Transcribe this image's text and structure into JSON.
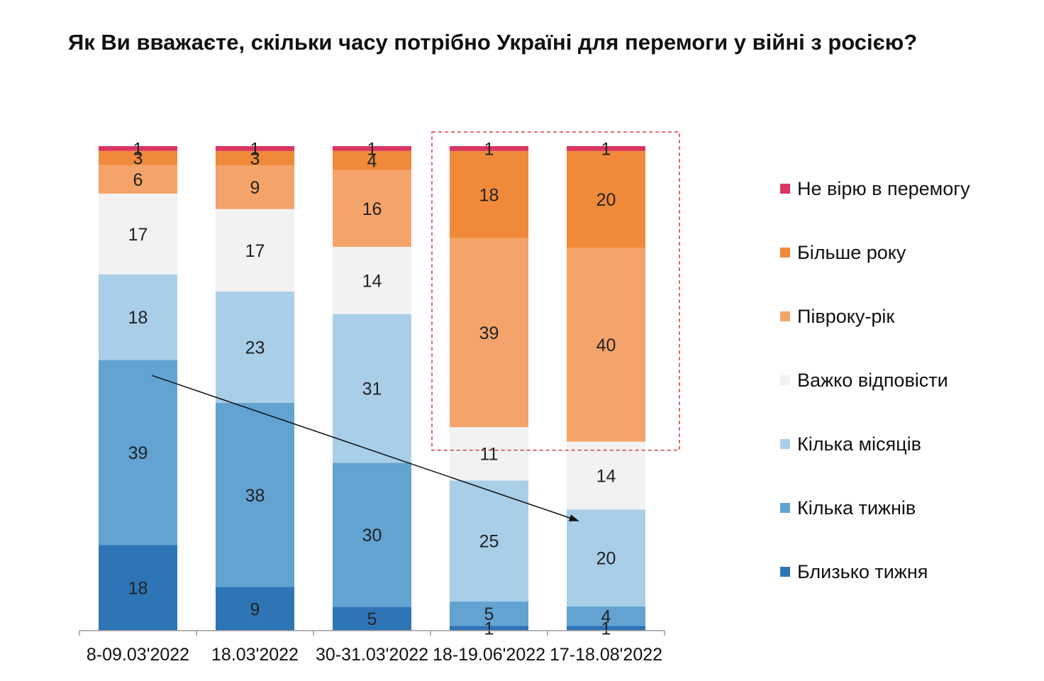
{
  "chart_data": {
    "type": "bar",
    "stacked": true,
    "title": "Як Ви вважаєте, скільки часу потрібно Україні для перемоги у війні з росією?",
    "categories": [
      "8-09.03'2022",
      "18.03'2022",
      "30-31.03'2022",
      "18-19.06'2022",
      "17-18.08'2022"
    ],
    "series": [
      {
        "name": "Близько тижня",
        "color": "#2E75B6",
        "values": [
          18,
          9,
          5,
          1,
          1
        ]
      },
      {
        "name": "Кілька тижнів",
        "color": "#62A3D2",
        "values": [
          39,
          38,
          30,
          5,
          4
        ]
      },
      {
        "name": "Кілька місяців",
        "color": "#A9CEE8",
        "values": [
          18,
          23,
          31,
          25,
          20
        ]
      },
      {
        "name": "Важко відповісти",
        "color": "#F2F2F2",
        "values": [
          17,
          17,
          14,
          11,
          14
        ]
      },
      {
        "name": "Півроку-рік",
        "color": "#F4A46A",
        "values": [
          6,
          9,
          16,
          39,
          40
        ]
      },
      {
        "name": "Більше року",
        "color": "#F08A3A",
        "values": [
          3,
          3,
          4,
          18,
          20
        ]
      },
      {
        "name": "Не вірю в перемогу",
        "color": "#DA3462",
        "values": [
          1,
          1,
          1,
          1,
          1
        ]
      }
    ],
    "legend": "right",
    "legend_order": [
      "Не вірю в перемогу",
      "Більше року",
      "Півроку-рік",
      "Важко відповісти",
      "Кілька місяців",
      "Кілька тижнів",
      "Близько тижня"
    ],
    "grid": false,
    "annotations": [
      "arrow from the 'Кілька тижнів' segment of 8-09.03'2022 to the 'Кілька місяців' segment of 17-18.08'2022",
      "red dashed box around the Півроку-рік and Більше року segments of the last two bars"
    ]
  }
}
